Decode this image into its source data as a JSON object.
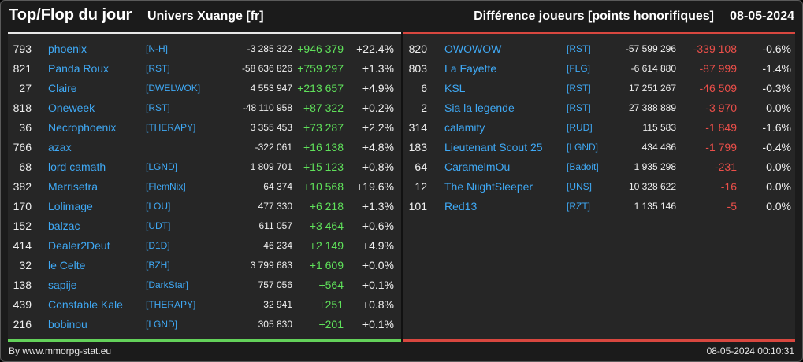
{
  "header": {
    "title": "Top/Flop du jour",
    "universe": "Univers Xuange [fr]",
    "metric": "Différence joueurs [points honorifiques]",
    "date": "08-05-2024"
  },
  "colors": {
    "positive": "#5fe15a",
    "negative": "#ec4f4a",
    "link": "#3fa9f5"
  },
  "top": [
    {
      "rank": "793",
      "name": "phoenix",
      "guild": "[N-H]",
      "value": "-3 285 322",
      "diff": "+946 379",
      "pct": "+22.4%"
    },
    {
      "rank": "821",
      "name": "Panda Roux",
      "guild": "[RST]",
      "value": "-58 636 826",
      "diff": "+759 297",
      "pct": "+1.3%"
    },
    {
      "rank": "27",
      "name": "Claire",
      "guild": "[DWELWOK]",
      "value": "4 553 947",
      "diff": "+213 657",
      "pct": "+4.9%"
    },
    {
      "rank": "818",
      "name": "Oneweek",
      "guild": "[RST]",
      "value": "-48 110 958",
      "diff": "+87 322",
      "pct": "+0.2%"
    },
    {
      "rank": "36",
      "name": "Necrophoenix",
      "guild": "[THERAPY]",
      "value": "3 355 453",
      "diff": "+73 287",
      "pct": "+2.2%"
    },
    {
      "rank": "766",
      "name": "azax",
      "guild": "",
      "value": "-322 061",
      "diff": "+16 138",
      "pct": "+4.8%"
    },
    {
      "rank": "68",
      "name": "lord camath",
      "guild": "[LGND]",
      "value": "1 809 701",
      "diff": "+15 123",
      "pct": "+0.8%"
    },
    {
      "rank": "382",
      "name": "Merrisetra",
      "guild": "[FlemNix]",
      "value": "64 374",
      "diff": "+10 568",
      "pct": "+19.6%"
    },
    {
      "rank": "170",
      "name": "Lolimage",
      "guild": "[LOU]",
      "value": "477 330",
      "diff": "+6 218",
      "pct": "+1.3%"
    },
    {
      "rank": "152",
      "name": "balzac",
      "guild": "[UDT]",
      "value": "611 057",
      "diff": "+3 464",
      "pct": "+0.6%"
    },
    {
      "rank": "414",
      "name": "Dealer2Deut",
      "guild": "[D1D]",
      "value": "46 234",
      "diff": "+2 149",
      "pct": "+4.9%"
    },
    {
      "rank": "32",
      "name": "le Celte",
      "guild": "[BZH]",
      "value": "3 799 683",
      "diff": "+1 609",
      "pct": "+0.0%"
    },
    {
      "rank": "138",
      "name": "sapije",
      "guild": "[DarkStar]",
      "value": "757 056",
      "diff": "+564",
      "pct": "+0.1%"
    },
    {
      "rank": "439",
      "name": "Constable Kale",
      "guild": "[THERAPY]",
      "value": "32 941",
      "diff": "+251",
      "pct": "+0.8%"
    },
    {
      "rank": "216",
      "name": "bobinou",
      "guild": "[LGND]",
      "value": "305 830",
      "diff": "+201",
      "pct": "+0.1%"
    }
  ],
  "flop": [
    {
      "rank": "820",
      "name": "OWOWOW",
      "guild": "[RST]",
      "value": "-57 599 296",
      "diff": "-339 108",
      "pct": "-0.6%"
    },
    {
      "rank": "803",
      "name": "La Fayette",
      "guild": "[FLG]",
      "value": "-6 614 880",
      "diff": "-87 999",
      "pct": "-1.4%"
    },
    {
      "rank": "6",
      "name": "KSL",
      "guild": "[RST]",
      "value": "17 251 267",
      "diff": "-46 509",
      "pct": "-0.3%"
    },
    {
      "rank": "2",
      "name": "Sia la legende",
      "guild": "[RST]",
      "value": "27 388 889",
      "diff": "-3 970",
      "pct": "0.0%"
    },
    {
      "rank": "314",
      "name": "calamity",
      "guild": "[RUD]",
      "value": "115 583",
      "diff": "-1 849",
      "pct": "-1.6%"
    },
    {
      "rank": "183",
      "name": "Lieutenant Scout 25",
      "guild": "[LGND]",
      "value": "434 486",
      "diff": "-1 799",
      "pct": "-0.4%"
    },
    {
      "rank": "64",
      "name": "CaramelmOu",
      "guild": "[Badoit]",
      "value": "1 935 298",
      "diff": "-231",
      "pct": "0.0%"
    },
    {
      "rank": "12",
      "name": "The NiightSleeper",
      "guild": "[UNS]",
      "value": "10 328 622",
      "diff": "-16",
      "pct": "0.0%"
    },
    {
      "rank": "101",
      "name": "Red13",
      "guild": "[RZT]",
      "value": "1 135 146",
      "diff": "-5",
      "pct": "0.0%"
    }
  ],
  "footer": {
    "credit": "By www.mmorpg-stat.eu",
    "timestamp": "08-05-2024 00:10:31"
  }
}
